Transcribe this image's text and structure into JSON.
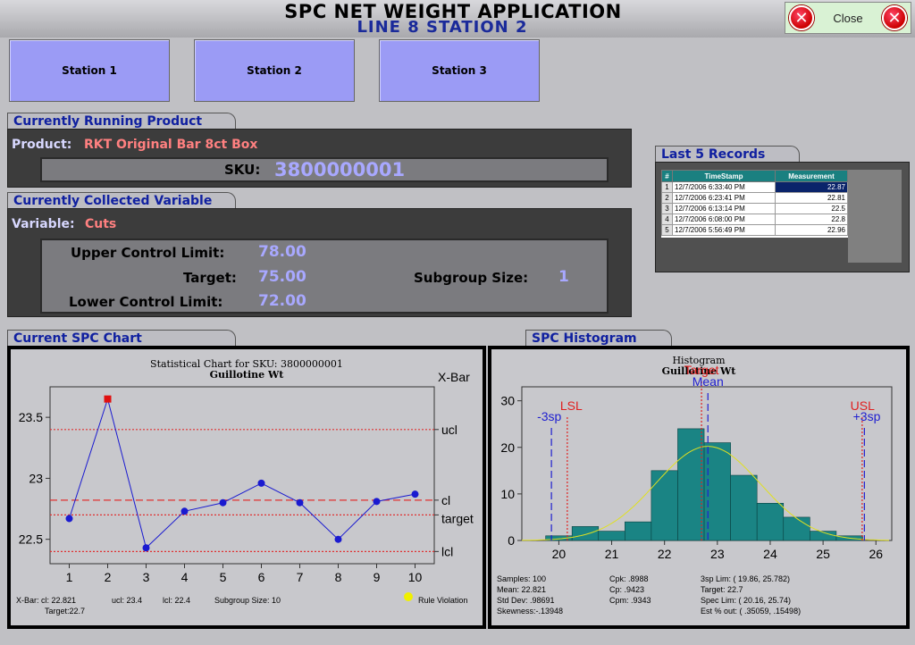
{
  "app": {
    "title": "SPC NET WEIGHT APPLICATION",
    "subtitle": "LINE 8  STATION  2",
    "close_label": "Close"
  },
  "stations": [
    {
      "label": "Station 1"
    },
    {
      "label": "Station 2"
    },
    {
      "label": "Station 3"
    }
  ],
  "product": {
    "tab": "Currently Running Product",
    "product_label": "Product:",
    "product_value": "RKT Original Bar 8ct Box",
    "sku_label": "SKU:",
    "sku_value": "3800000001"
  },
  "variable": {
    "tab": "Currently Collected Variable",
    "variable_label": "Variable:",
    "variable_value": "Cuts",
    "ucl_label": "Upper Control Limit:",
    "ucl_value": "78.00",
    "target_label": "Target:",
    "target_value": "75.00",
    "lcl_label": "Lower Control Limit:",
    "lcl_value": "72.00",
    "subgroup_label": "Subgroup Size:",
    "subgroup_value": "1"
  },
  "records": {
    "tab": "Last 5 Records",
    "headers": [
      "#",
      "TimeStamp",
      "Measurement"
    ],
    "rows": [
      {
        "n": "1",
        "ts": "12/7/2006 6:33:40 PM",
        "m": "22.87"
      },
      {
        "n": "2",
        "ts": "12/7/2006 6:23:41 PM",
        "m": "22.81"
      },
      {
        "n": "3",
        "ts": "12/7/2006 6:13:14 PM",
        "m": "22.5"
      },
      {
        "n": "4",
        "ts": "12/7/2006 6:08:00 PM",
        "m": "22.8"
      },
      {
        "n": "5",
        "ts": "12/7/2006 5:56:49 PM",
        "m": "22.96"
      }
    ]
  },
  "spc_chart_tab": "Current SPC Chart",
  "histogram_tab": "SPC Histogram",
  "spc_footer": {
    "xbar_cl": "X-Bar: cl: 22.821",
    "ucl": "ucl: 23.4",
    "lcl": "lcl: 22.4",
    "subgroup": "Subgroup Size:  10",
    "target": "Target:22.7",
    "rule_violation": "Rule Violation"
  },
  "hist_stats": [
    [
      "Samples:  100",
      "Cpk:      .8988",
      "3sp Lim:   ( 19.86,  25.782)"
    ],
    [
      "Mean:     22.821",
      "Cp:        .9423",
      "Target:       22.7"
    ],
    [
      "Std Dev:   .98691",
      "Cpm:       .9343",
      "Spec Lim:  ( 20.16,  25.74)"
    ],
    [
      "Skewness:-.13948",
      "",
      "Est % out:  ( .35059,  .15498)"
    ]
  ],
  "chart_data": [
    {
      "type": "line",
      "title": "Statistical Chart for SKU: 3800000001",
      "subtitle": "Guillotine Wt",
      "corner_label": "X-Bar",
      "x": [
        1,
        2,
        3,
        4,
        5,
        6,
        7,
        8,
        9,
        10
      ],
      "y": [
        22.67,
        23.65,
        22.43,
        22.73,
        22.8,
        22.96,
        22.8,
        22.5,
        22.81,
        22.87
      ],
      "violation_index": 1,
      "xlim": [
        0.5,
        10.5
      ],
      "ylim": [
        22.3,
        23.75
      ],
      "yticks": [
        22.5,
        23,
        23.5
      ],
      "ytick_labels": [
        "22.5",
        "23",
        "23.5"
      ],
      "lines": [
        {
          "name": "ucl",
          "value": 23.4,
          "style": "dotted",
          "color": "#e03030"
        },
        {
          "name": "cl",
          "value": 22.821,
          "style": "dashed",
          "color": "#e03030"
        },
        {
          "name": "target",
          "value": 22.7,
          "style": "dotted",
          "color": "#e03030"
        },
        {
          "name": "lcl",
          "value": 22.4,
          "style": "dotted",
          "color": "#e03030"
        }
      ],
      "colors": {
        "series": "#1a1ad0",
        "violation": "#e01010"
      }
    },
    {
      "type": "bar",
      "title": "Histogram",
      "subtitle": "Guillotine Wt",
      "bins_start": [
        19.75,
        20.25,
        20.75,
        21.25,
        21.75,
        22.25,
        22.75,
        23.25,
        23.75,
        24.25,
        24.75,
        25.25
      ],
      "bin_width": 0.5,
      "values": [
        1,
        3,
        2,
        4,
        15,
        24,
        21,
        14,
        8,
        5,
        2,
        1
      ],
      "xlim": [
        19.3,
        26.3
      ],
      "ylim": [
        0,
        33
      ],
      "xticks": [
        20,
        21,
        22,
        23,
        24,
        25,
        26
      ],
      "yticks": [
        0,
        10,
        20,
        30
      ],
      "markers": [
        {
          "label": "-3sp",
          "value": 19.86,
          "color": "#2020d0"
        },
        {
          "label": "LSL",
          "value": 20.16,
          "color": "#e02020"
        },
        {
          "label": "Target",
          "value": 22.7,
          "color": "#e02020"
        },
        {
          "label": "Mean",
          "value": 22.821,
          "color": "#2020d0"
        },
        {
          "label": "USL",
          "value": 25.74,
          "color": "#e02020"
        },
        {
          "label": "+3sp",
          "value": 25.782,
          "color": "#2020d0"
        }
      ],
      "normal_curve": {
        "mean": 22.821,
        "sd": 0.98691,
        "n": 100
      },
      "colors": {
        "bar": "#1a8484",
        "curve": "#e0e020"
      }
    }
  ]
}
